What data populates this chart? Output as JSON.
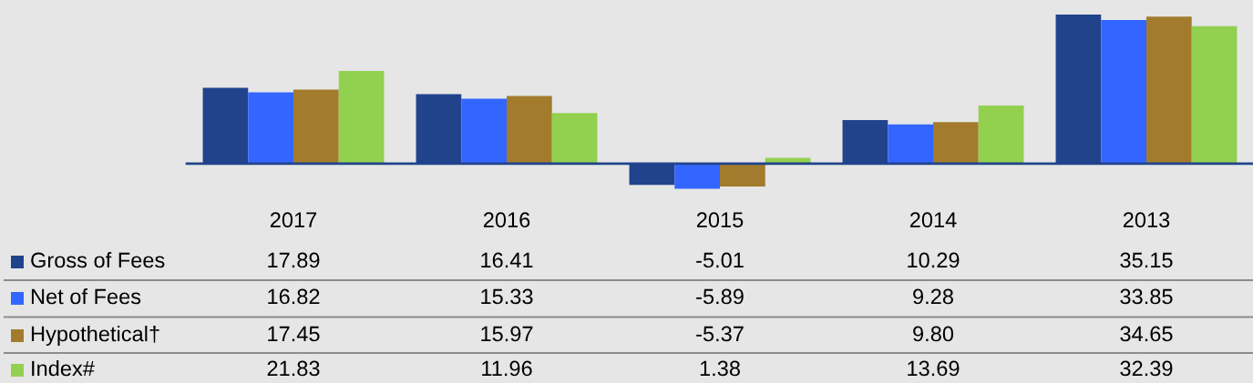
{
  "chart_data": {
    "type": "bar",
    "categories": [
      "2017",
      "2016",
      "2015",
      "2014",
      "2013"
    ],
    "series": [
      {
        "name": "Gross of Fees",
        "color": "#21438c",
        "values": [
          17.89,
          16.41,
          -5.01,
          10.29,
          35.15
        ],
        "value_labels": [
          "17.89",
          "16.41",
          "-5.01",
          "10.29",
          "35.15"
        ]
      },
      {
        "name": "Net of Fees",
        "color": "#3366ff",
        "values": [
          16.82,
          15.33,
          -5.89,
          9.28,
          33.85
        ],
        "value_labels": [
          "16.82",
          "15.33",
          "-5.89",
          "9.28",
          "33.85"
        ]
      },
      {
        "name": "Hypothetical†",
        "color": "#a27c2c",
        "values": [
          17.45,
          15.97,
          -5.37,
          9.8,
          34.65
        ],
        "value_labels": [
          "17.45",
          "15.97",
          "-5.37",
          "9.80",
          "34.65"
        ]
      },
      {
        "name": "Index#",
        "color": "#92d050",
        "values": [
          21.83,
          11.96,
          1.38,
          13.69,
          32.39
        ],
        "value_labels": [
          "21.83",
          "11.96",
          "1.38",
          "13.69",
          "32.39"
        ]
      }
    ],
    "legend": "bottom"
  }
}
